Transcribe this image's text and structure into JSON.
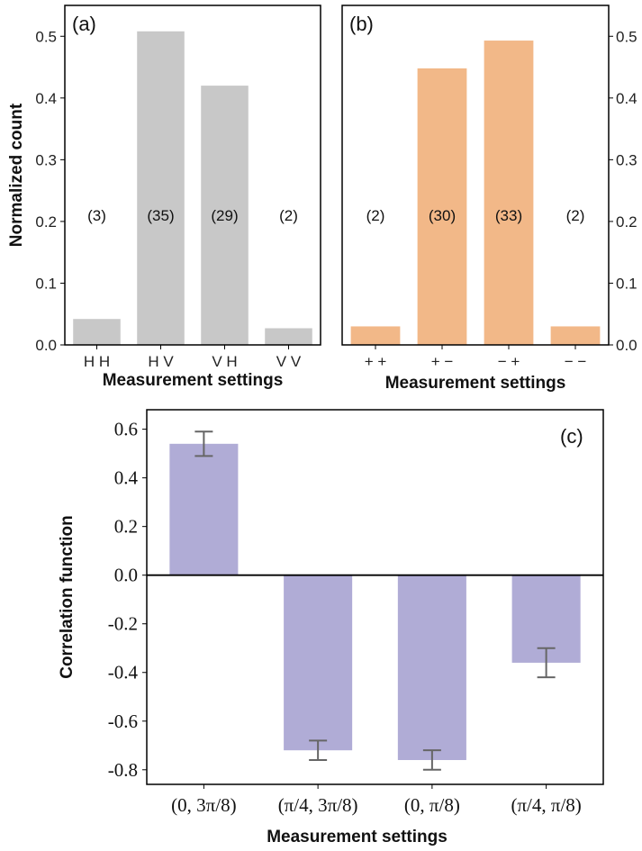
{
  "chart_data": [
    {
      "type": "bar",
      "panel_label": "(a)",
      "categories": [
        "H H",
        "H V",
        "V H",
        "V V"
      ],
      "values": [
        0.042,
        0.508,
        0.42,
        0.027
      ],
      "annotations": [
        "(3)",
        "(35)",
        "(29)",
        "(2)"
      ],
      "color": "#c8c8c8",
      "xlabel": "Measurement settings",
      "ylabel": "Normalized count",
      "ylim": [
        0,
        0.55
      ],
      "yticks": [
        "0.0",
        "0.1",
        "0.2",
        "0.3",
        "0.4",
        "0.5"
      ],
      "ytick_values": [
        0,
        0.1,
        0.2,
        0.3,
        0.4,
        0.5
      ],
      "yaxis_side": "left"
    },
    {
      "type": "bar",
      "panel_label": "(b)",
      "categories": [
        "+ +",
        "+ −",
        "− +",
        "− −"
      ],
      "values": [
        0.03,
        0.448,
        0.493,
        0.03
      ],
      "annotations": [
        "(2)",
        "(30)",
        "(33)",
        "(2)"
      ],
      "color": "#f2b888",
      "xlabel": "Measurement settings",
      "ylabel": "",
      "ylim": [
        0,
        0.55
      ],
      "yticks": [
        "0.0",
        "0.1",
        "0.2",
        "0.3",
        "0.4",
        "0.5"
      ],
      "ytick_values": [
        0,
        0.1,
        0.2,
        0.3,
        0.4,
        0.5
      ],
      "yaxis_side": "right"
    },
    {
      "type": "bar",
      "panel_label": "(c)",
      "categories": [
        "(0, 3π/8)",
        "(π/4, 3π/8)",
        "(0, π/8)",
        "(π/4, π/8)"
      ],
      "values": [
        0.54,
        -0.72,
        -0.76,
        -0.36
      ],
      "errors": [
        0.05,
        0.04,
        0.04,
        0.06
      ],
      "color": "#b0acd6",
      "xlabel": "Measurement settings",
      "ylabel": "Correlation function",
      "ylim": [
        -0.86,
        0.68
      ],
      "yticks": [
        "0.6",
        "0.4",
        "0.2",
        "0.0",
        "-0.2",
        "-0.4",
        "-0.6",
        "-0.8"
      ],
      "ytick_values": [
        0.6,
        0.4,
        0.2,
        0.0,
        -0.2,
        -0.4,
        -0.6,
        -0.8
      ]
    }
  ]
}
